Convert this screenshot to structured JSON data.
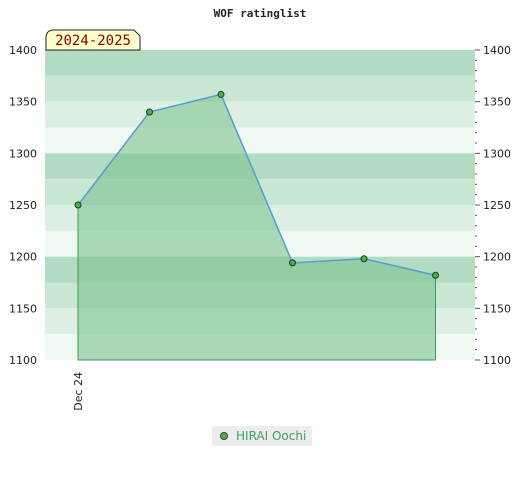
{
  "chart_data": {
    "type": "area",
    "title": "WOF ratinglist",
    "season_label": "2024-2025",
    "x_tick_labels": [
      {
        "index": 0,
        "label": "Dec 24"
      }
    ],
    "series": [
      {
        "name": "HIRAI Oochi",
        "values": [
          1250,
          1340,
          1357,
          1194,
          1198,
          1182
        ]
      }
    ],
    "ylim": [
      1100,
      1400
    ],
    "y_ticks": [
      1100,
      1150,
      1200,
      1250,
      1300,
      1350,
      1400
    ],
    "grid": true,
    "legend": "bottom-center",
    "colors": {
      "fill": "#7dc38f",
      "line": "#5b9bd5",
      "marker": "#4caf50",
      "band_dark": "#b2dcc2",
      "band_light": "#f0f8f2"
    }
  }
}
